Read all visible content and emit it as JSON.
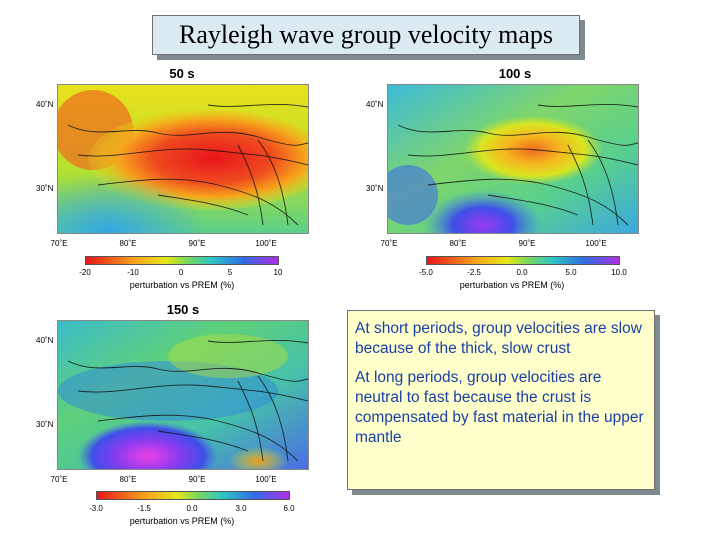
{
  "title": "Rayleigh wave group velocity maps",
  "maps": [
    {
      "id": "50s",
      "period_label": "50 s",
      "lat_labels": [
        "40˚N",
        "30˚N"
      ],
      "lon_labels": [
        "70˚E",
        "80˚E",
        "90˚E",
        "100˚E"
      ],
      "colorbar_ticks": [
        "-20",
        "-10",
        "0",
        "5",
        "10"
      ],
      "colorbar_label": "perturbation vs PREM (%)"
    },
    {
      "id": "100s",
      "period_label": "100 s",
      "lat_labels": [
        "40˚N",
        "30˚N"
      ],
      "lon_labels": [
        "70˚E",
        "80˚E",
        "90˚E",
        "100˚E"
      ],
      "colorbar_ticks": [
        "-5.0",
        "-2.5",
        "0.0",
        "5.0",
        "10.0"
      ],
      "colorbar_label": "perturbation vs PREM (%)"
    },
    {
      "id": "150s",
      "period_label": "150 s",
      "lat_labels": [
        "40˚N",
        "30˚N"
      ],
      "lon_labels": [
        "70˚E",
        "80˚E",
        "90˚E",
        "100˚E"
      ],
      "colorbar_ticks": [
        "-3.0",
        "-1.5",
        "0.0",
        "3.0",
        "6.0"
      ],
      "colorbar_label": "perturbation vs PREM (%)"
    }
  ],
  "notes": [
    "At short periods, group velocities are slow because of the thick, slow crust",
    "At long periods, group velocities are neutral to fast because the crust is compensated by fast material in the upper mantle"
  ],
  "colors": {
    "title_bg": "#dcebf2",
    "note_bg": "#ffffcc",
    "note_text": "#1a3fa8"
  }
}
